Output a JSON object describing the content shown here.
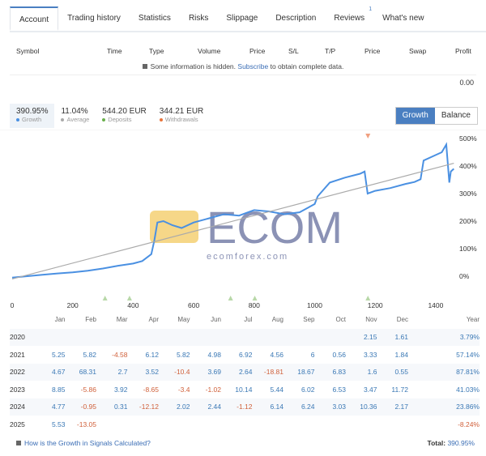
{
  "tabs": [
    {
      "label": "Account",
      "active": true
    },
    {
      "label": "Trading history"
    },
    {
      "label": "Statistics"
    },
    {
      "label": "Risks"
    },
    {
      "label": "Slippage"
    },
    {
      "label": "Description"
    },
    {
      "label": "Reviews",
      "badge": "1"
    },
    {
      "label": "What's new"
    }
  ],
  "positions": {
    "headers": [
      "Symbol",
      "Time",
      "Type",
      "Volume",
      "Price",
      "S/L",
      "T/P",
      "Price",
      "Swap",
      "Profit"
    ],
    "hidden_note": "Some information is hidden.",
    "subscribe_link": "Subscribe",
    "hidden_note_tail": "to obtain complete data.",
    "profit_total": "0.00"
  },
  "stats": [
    {
      "value": "390.95%",
      "label": "Growth",
      "color": "#4a90e2"
    },
    {
      "value": "11.04%",
      "label": "Average",
      "color": "#aaaaaa"
    },
    {
      "value": "544.20 EUR",
      "label": "Deposits",
      "color": "#6ab04c"
    },
    {
      "value": "344.21 EUR",
      "label": "Withdrawals",
      "color": "#e8743b"
    }
  ],
  "toggle": {
    "growth": "Growth",
    "balance": "Balance",
    "selected": "Growth"
  },
  "watermark": {
    "brand": "ECOM",
    "site": "ecomforex.com"
  },
  "chart_data": {
    "type": "line",
    "xlim": [
      0,
      1460
    ],
    "ylim": [
      -30,
      520
    ],
    "x_ticks": [
      "0",
      "200",
      "400",
      "600",
      "800",
      "1000",
      "1200",
      "1400"
    ],
    "y_ticks": [
      "0%",
      "100%",
      "200%",
      "300%",
      "400%",
      "500%"
    ],
    "series": [
      {
        "color": "#4a90e2",
        "points": [
          [
            0,
            -5
          ],
          [
            50,
            0
          ],
          [
            100,
            5
          ],
          [
            150,
            10
          ],
          [
            200,
            14
          ],
          [
            250,
            20
          ],
          [
            300,
            28
          ],
          [
            350,
            38
          ],
          [
            400,
            46
          ],
          [
            430,
            55
          ],
          [
            460,
            80
          ],
          [
            470,
            130
          ],
          [
            480,
            195
          ],
          [
            500,
            200
          ],
          [
            530,
            185
          ],
          [
            560,
            175
          ],
          [
            600,
            195
          ],
          [
            650,
            210
          ],
          [
            700,
            225
          ],
          [
            750,
            220
          ],
          [
            780,
            232
          ],
          [
            800,
            240
          ],
          [
            850,
            235
          ],
          [
            900,
            225
          ],
          [
            950,
            232
          ],
          [
            1000,
            262
          ],
          [
            1010,
            290
          ],
          [
            1050,
            340
          ],
          [
            1100,
            358
          ],
          [
            1150,
            372
          ],
          [
            1165,
            380
          ],
          [
            1175,
            300
          ],
          [
            1200,
            310
          ],
          [
            1250,
            320
          ],
          [
            1300,
            335
          ],
          [
            1330,
            342
          ],
          [
            1350,
            352
          ],
          [
            1360,
            420
          ],
          [
            1400,
            440
          ],
          [
            1420,
            450
          ],
          [
            1435,
            478
          ],
          [
            1445,
            340
          ],
          [
            1450,
            380
          ],
          [
            1460,
            390
          ]
        ]
      },
      {
        "color": "#aaaaaa",
        "points": [
          [
            0,
            -10
          ],
          [
            1460,
            410
          ]
        ]
      }
    ],
    "deposit_markers": [
      307,
      388,
      722,
      802,
      1176
    ],
    "withdrawal_markers": [
      1176
    ]
  },
  "monthly": {
    "headers": [
      "",
      "Jan",
      "Feb",
      "Mar",
      "Apr",
      "May",
      "Jun",
      "Jul",
      "Aug",
      "Sep",
      "Oct",
      "Nov",
      "Dec",
      "Year"
    ],
    "rows": [
      [
        "2020",
        "",
        "",
        "",
        "",
        "",
        "",
        "",
        "",
        "",
        "",
        "2.15",
        "1.61",
        "3.79%"
      ],
      [
        "2021",
        "5.25",
        "5.82",
        "-4.58",
        "6.12",
        "5.82",
        "4.98",
        "6.92",
        "4.56",
        "6",
        "0.56",
        "3.33",
        "1.84",
        "57.14%"
      ],
      [
        "2022",
        "4.67",
        "68.31",
        "2.7",
        "3.52",
        "-10.4",
        "3.69",
        "2.64",
        "-18.81",
        "18.67",
        "6.83",
        "1.6",
        "0.55",
        "87.81%"
      ],
      [
        "2023",
        "8.85",
        "-5.86",
        "3.92",
        "-8.65",
        "-3.4",
        "-1.02",
        "10.14",
        "5.44",
        "6.02",
        "6.53",
        "3.47",
        "11.72",
        "41.03%"
      ],
      [
        "2024",
        "4.77",
        "-0.95",
        "0.31",
        "-12.12",
        "2.02",
        "2.44",
        "-1.12",
        "6.14",
        "6.24",
        "3.03",
        "10.36",
        "2.17",
        "23.86%"
      ],
      [
        "2025",
        "5.53",
        "-13.05",
        "",
        "",
        "",
        "",
        "",
        "",
        "",
        "",
        "",
        "",
        "-8.24%"
      ]
    ]
  },
  "footer": {
    "help_link": "How is the Growth in Signals Calculated?",
    "total_label": "Total:",
    "total_value": "390.95%"
  }
}
